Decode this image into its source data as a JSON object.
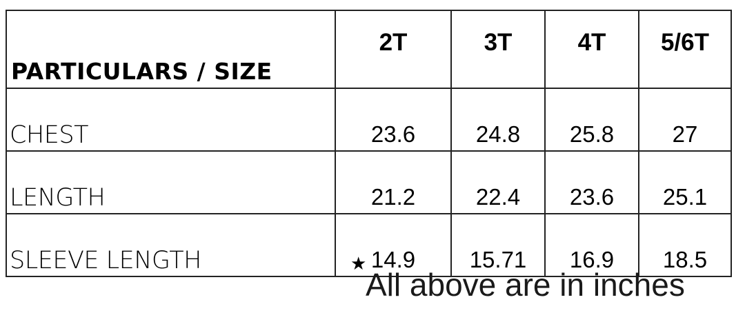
{
  "table": {
    "header_label": "PARTICULARS / SIZE",
    "sizes": [
      "2T",
      "3T",
      "4T",
      "5/6T"
    ],
    "rows": [
      {
        "label": "CHEST",
        "values": [
          "23.6",
          "24.8",
          "25.8",
          "27"
        ]
      },
      {
        "label": "LENGTH",
        "values": [
          "21.2",
          "22.4",
          "23.6",
          "25.1"
        ]
      },
      {
        "label": "SLEEVE LENGTH",
        "values": [
          "14.9",
          "15.71",
          "16.9",
          "18.5"
        ]
      }
    ]
  },
  "footnote": {
    "icon": "star-icon",
    "star": "★",
    "text": "All above are in inches"
  }
}
